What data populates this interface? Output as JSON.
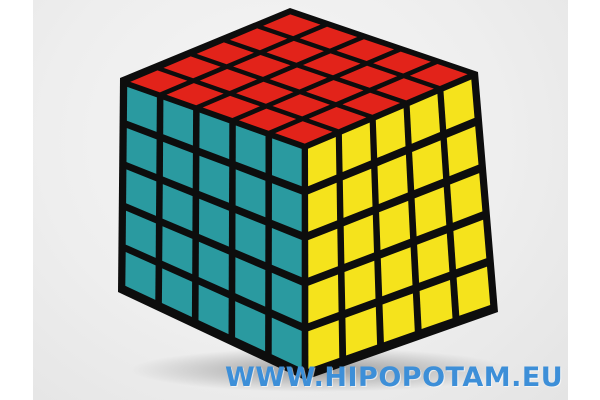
{
  "image": {
    "subject": "5x5 twisty cube puzzle",
    "grid_size": 5,
    "faces": {
      "top": {
        "name": "top-face",
        "sticker_color": "#e2231a"
      },
      "left": {
        "name": "left-face",
        "sticker_color": "#2a9aa0"
      },
      "right": {
        "name": "right-face",
        "sticker_color": "#f5e31c"
      }
    },
    "body_color": "#0d0d0d",
    "background_color": "#eeeeee"
  },
  "watermark": {
    "text": "WWW.HIPOPOTAM.EU",
    "color": "#3d8fd8"
  }
}
